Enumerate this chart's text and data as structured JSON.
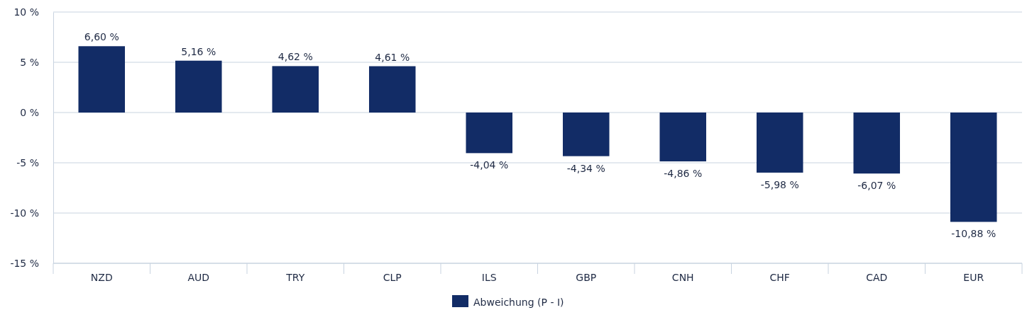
{
  "chart_data": {
    "type": "bar",
    "categories": [
      "NZD",
      "AUD",
      "TRY",
      "CLP",
      "ILS",
      "GBP",
      "CNH",
      "CHF",
      "CAD",
      "EUR"
    ],
    "series": [
      {
        "name": "Abweichung (P - I)",
        "color": "#122c66",
        "values": [
          6.6,
          5.16,
          4.62,
          4.61,
          -4.04,
          -4.34,
          -4.86,
          -5.98,
          -6.07,
          -10.88
        ],
        "value_labels": [
          "6,60 %",
          "5,16 %",
          "4,62 %",
          "4,61 %",
          "-4,04 %",
          "-4,34 %",
          "-4,86 %",
          "-5,98 %",
          "-6,07 %",
          "-10,88 %"
        ]
      }
    ],
    "ylim": [
      -15,
      10
    ],
    "yticks": [
      {
        "value": -15,
        "label": "-15 %"
      },
      {
        "value": -10,
        "label": "-10 %"
      },
      {
        "value": -5,
        "label": "-5 %"
      },
      {
        "value": 0,
        "label": "0 %"
      },
      {
        "value": 5,
        "label": "5 %"
      },
      {
        "value": 10,
        "label": "10 %"
      }
    ],
    "grid": "y",
    "legend": "bottom"
  }
}
